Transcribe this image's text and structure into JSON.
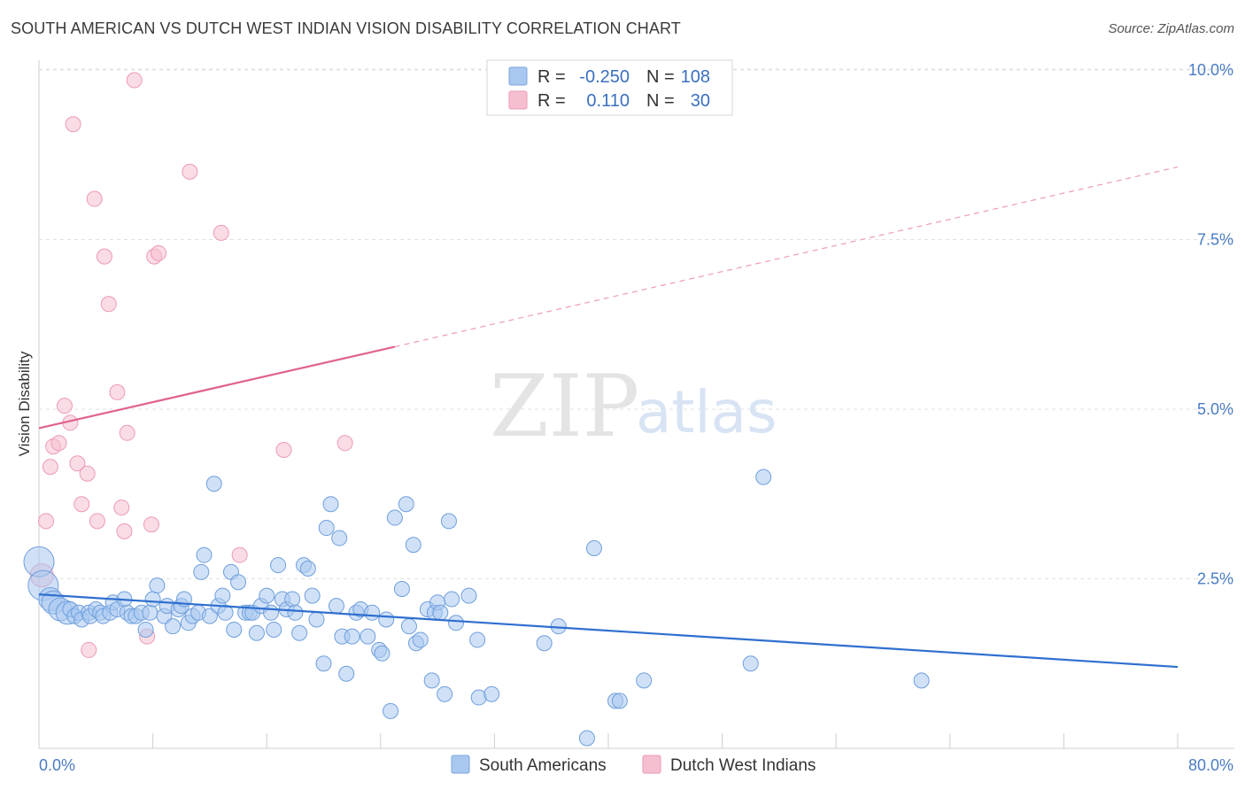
{
  "header": {
    "title": "SOUTH AMERICAN VS DUTCH WEST INDIAN VISION DISABILITY CORRELATION CHART",
    "source": "Source: ZipAtlas.com"
  },
  "watermark": {
    "zip": "ZIP",
    "atlas": "atlas"
  },
  "legend": {
    "rows": [
      {
        "r_label": "R =",
        "r_value": "-0.250",
        "n_label": "N =",
        "n_value": "108",
        "color": "#a9c8f0"
      },
      {
        "r_label": "R =",
        "r_value": "0.110",
        "n_label": "N =",
        "n_value": "30",
        "color": "#f6bfd0"
      }
    ]
  },
  "bottom_legend": {
    "items": [
      {
        "label": "South Americans",
        "color": "#a9c8f0"
      },
      {
        "label": "Dutch West Indians",
        "color": "#f6bfd0"
      }
    ]
  },
  "chart_data": {
    "type": "scatter",
    "title": "SOUTH AMERICAN VS DUTCH WEST INDIAN VISION DISABILITY CORRELATION CHART",
    "xlabel": "",
    "ylabel": "Vision Disability",
    "xlim": [
      0,
      80
    ],
    "ylim": [
      0,
      10.5
    ],
    "x_tick_labels": [
      "0.0%",
      "80.0%"
    ],
    "y_ticks": [
      2.5,
      5.0,
      7.5,
      10.0
    ],
    "y_tick_labels": [
      "2.5%",
      "5.0%",
      "7.5%",
      "10.0%"
    ],
    "grid": true,
    "legend_position": "top-center",
    "colors": {
      "south_americans": "#6fa0e0",
      "dutch_west_indians": "#ee98b4",
      "blue_line": "#2f6fcf",
      "pink_line": "#e0628f"
    },
    "series": [
      {
        "name": "South Americans",
        "r": -0.25,
        "n": 108,
        "trend": {
          "x": [
            0,
            80
          ],
          "y": [
            2.27,
            1.2
          ]
        },
        "points": [
          {
            "x": 0.0,
            "y": 2.75,
            "s": 3
          },
          {
            "x": 0.3,
            "y": 2.4,
            "s": 3
          },
          {
            "x": 0.8,
            "y": 2.2,
            "s": 2
          },
          {
            "x": 1.0,
            "y": 2.15,
            "s": 2
          },
          {
            "x": 1.5,
            "y": 2.05,
            "s": 2
          },
          {
            "x": 2.0,
            "y": 2.0,
            "s": 2
          },
          {
            "x": 2.2,
            "y": 2.05,
            "s": 1
          },
          {
            "x": 2.5,
            "y": 1.95,
            "s": 1
          },
          {
            "x": 2.8,
            "y": 2.0,
            "s": 1
          },
          {
            "x": 3.0,
            "y": 1.9,
            "s": 1
          },
          {
            "x": 3.5,
            "y": 2.0,
            "s": 1
          },
          {
            "x": 3.6,
            "y": 1.95,
            "s": 1
          },
          {
            "x": 4.0,
            "y": 2.05,
            "s": 1
          },
          {
            "x": 4.3,
            "y": 2.0,
            "s": 1
          },
          {
            "x": 4.5,
            "y": 1.95,
            "s": 1
          },
          {
            "x": 5.0,
            "y": 2.0,
            "s": 1
          },
          {
            "x": 5.2,
            "y": 2.15,
            "s": 1
          },
          {
            "x": 5.5,
            "y": 2.05,
            "s": 1
          },
          {
            "x": 6.0,
            "y": 2.2,
            "s": 1
          },
          {
            "x": 6.2,
            "y": 2.0,
            "s": 1
          },
          {
            "x": 6.5,
            "y": 1.95,
            "s": 1
          },
          {
            "x": 6.8,
            "y": 1.95,
            "s": 1
          },
          {
            "x": 7.2,
            "y": 2.0,
            "s": 1
          },
          {
            "x": 7.5,
            "y": 1.75,
            "s": 1
          },
          {
            "x": 7.8,
            "y": 2.0,
            "s": 1
          },
          {
            "x": 8.0,
            "y": 2.2,
            "s": 1
          },
          {
            "x": 8.3,
            "y": 2.4,
            "s": 1
          },
          {
            "x": 8.8,
            "y": 1.95,
            "s": 1
          },
          {
            "x": 9.0,
            "y": 2.1,
            "s": 1
          },
          {
            "x": 9.4,
            "y": 1.8,
            "s": 1
          },
          {
            "x": 9.8,
            "y": 2.05,
            "s": 1
          },
          {
            "x": 10.0,
            "y": 2.1,
            "s": 1
          },
          {
            "x": 10.2,
            "y": 2.2,
            "s": 1
          },
          {
            "x": 10.5,
            "y": 1.85,
            "s": 1
          },
          {
            "x": 10.8,
            "y": 1.95,
            "s": 1
          },
          {
            "x": 11.2,
            "y": 2.0,
            "s": 1
          },
          {
            "x": 11.4,
            "y": 2.6,
            "s": 1
          },
          {
            "x": 11.6,
            "y": 2.85,
            "s": 1
          },
          {
            "x": 12.0,
            "y": 1.95,
            "s": 1
          },
          {
            "x": 12.3,
            "y": 3.9,
            "s": 1
          },
          {
            "x": 12.6,
            "y": 2.1,
            "s": 1
          },
          {
            "x": 12.9,
            "y": 2.25,
            "s": 1
          },
          {
            "x": 13.1,
            "y": 2.0,
            "s": 1
          },
          {
            "x": 13.5,
            "y": 2.6,
            "s": 1
          },
          {
            "x": 13.7,
            "y": 1.75,
            "s": 1
          },
          {
            "x": 14.0,
            "y": 2.45,
            "s": 1
          },
          {
            "x": 14.5,
            "y": 2.0,
            "s": 1
          },
          {
            "x": 14.8,
            "y": 2.0,
            "s": 1
          },
          {
            "x": 15.0,
            "y": 2.0,
            "s": 1
          },
          {
            "x": 15.3,
            "y": 1.7,
            "s": 1
          },
          {
            "x": 15.6,
            "y": 2.1,
            "s": 1
          },
          {
            "x": 16.0,
            "y": 2.25,
            "s": 1
          },
          {
            "x": 16.3,
            "y": 2.0,
            "s": 1
          },
          {
            "x": 16.5,
            "y": 1.75,
            "s": 1
          },
          {
            "x": 16.8,
            "y": 2.7,
            "s": 1
          },
          {
            "x": 17.1,
            "y": 2.2,
            "s": 1
          },
          {
            "x": 17.4,
            "y": 2.05,
            "s": 1
          },
          {
            "x": 17.8,
            "y": 2.2,
            "s": 1
          },
          {
            "x": 18.0,
            "y": 2.0,
            "s": 1
          },
          {
            "x": 18.3,
            "y": 1.7,
            "s": 1
          },
          {
            "x": 18.6,
            "y": 2.7,
            "s": 1
          },
          {
            "x": 18.9,
            "y": 2.65,
            "s": 1
          },
          {
            "x": 19.2,
            "y": 2.25,
            "s": 1
          },
          {
            "x": 19.5,
            "y": 1.9,
            "s": 1
          },
          {
            "x": 20.0,
            "y": 1.25,
            "s": 1
          },
          {
            "x": 20.2,
            "y": 3.25,
            "s": 1
          },
          {
            "x": 20.5,
            "y": 3.6,
            "s": 1
          },
          {
            "x": 20.9,
            "y": 2.1,
            "s": 1
          },
          {
            "x": 21.1,
            "y": 3.1,
            "s": 1
          },
          {
            "x": 21.3,
            "y": 1.65,
            "s": 1
          },
          {
            "x": 21.6,
            "y": 1.1,
            "s": 1
          },
          {
            "x": 22.0,
            "y": 1.65,
            "s": 1
          },
          {
            "x": 22.3,
            "y": 2.0,
            "s": 1
          },
          {
            "x": 22.6,
            "y": 2.05,
            "s": 1
          },
          {
            "x": 23.1,
            "y": 1.65,
            "s": 1
          },
          {
            "x": 23.4,
            "y": 2.0,
            "s": 1
          },
          {
            "x": 23.9,
            "y": 1.45,
            "s": 1
          },
          {
            "x": 24.1,
            "y": 1.4,
            "s": 1
          },
          {
            "x": 24.4,
            "y": 1.9,
            "s": 1
          },
          {
            "x": 24.7,
            "y": 0.55,
            "s": 1
          },
          {
            "x": 25.0,
            "y": 3.4,
            "s": 1
          },
          {
            "x": 25.5,
            "y": 2.35,
            "s": 1
          },
          {
            "x": 25.8,
            "y": 3.6,
            "s": 1
          },
          {
            "x": 26.0,
            "y": 1.8,
            "s": 1
          },
          {
            "x": 26.3,
            "y": 3.0,
            "s": 1
          },
          {
            "x": 26.5,
            "y": 1.55,
            "s": 1
          },
          {
            "x": 26.8,
            "y": 1.6,
            "s": 1
          },
          {
            "x": 27.3,
            "y": 2.05,
            "s": 1
          },
          {
            "x": 27.6,
            "y": 1.0,
            "s": 1
          },
          {
            "x": 27.8,
            "y": 2.0,
            "s": 1
          },
          {
            "x": 28.0,
            "y": 2.15,
            "s": 1
          },
          {
            "x": 28.2,
            "y": 2.0,
            "s": 1
          },
          {
            "x": 28.5,
            "y": 0.8,
            "s": 1
          },
          {
            "x": 28.8,
            "y": 3.35,
            "s": 1
          },
          {
            "x": 29.0,
            "y": 2.2,
            "s": 1
          },
          {
            "x": 29.3,
            "y": 1.85,
            "s": 1
          },
          {
            "x": 30.8,
            "y": 1.6,
            "s": 1
          },
          {
            "x": 30.9,
            "y": 0.75,
            "s": 1
          },
          {
            "x": 31.8,
            "y": 0.8,
            "s": 1
          },
          {
            "x": 35.5,
            "y": 1.55,
            "s": 1
          },
          {
            "x": 36.5,
            "y": 1.8,
            "s": 1
          },
          {
            "x": 38.5,
            "y": 0.15,
            "s": 1
          },
          {
            "x": 39.0,
            "y": 2.95,
            "s": 1
          },
          {
            "x": 40.5,
            "y": 0.7,
            "s": 1
          },
          {
            "x": 40.8,
            "y": 0.7,
            "s": 1
          },
          {
            "x": 42.5,
            "y": 1.0,
            "s": 1
          },
          {
            "x": 50.0,
            "y": 1.25,
            "s": 1
          },
          {
            "x": 50.9,
            "y": 4.0,
            "s": 1
          },
          {
            "x": 62.0,
            "y": 1.0,
            "s": 1
          },
          {
            "x": 30.2,
            "y": 2.25,
            "s": 1
          }
        ]
      },
      {
        "name": "Dutch West Indians",
        "r": 0.11,
        "n": 30,
        "trend_solid": {
          "x": [
            0,
            25
          ],
          "y": [
            4.72,
            5.92
          ]
        },
        "trend_dashed": {
          "x": [
            25,
            80
          ],
          "y": [
            5.92,
            8.57
          ]
        },
        "points": [
          {
            "x": 0.2,
            "y": 2.55,
            "s": 2
          },
          {
            "x": 0.5,
            "y": 3.35,
            "s": 1
          },
          {
            "x": 0.8,
            "y": 4.15,
            "s": 1
          },
          {
            "x": 1.0,
            "y": 4.45,
            "s": 1
          },
          {
            "x": 1.4,
            "y": 4.5,
            "s": 1
          },
          {
            "x": 1.8,
            "y": 5.05,
            "s": 1
          },
          {
            "x": 2.2,
            "y": 4.8,
            "s": 1
          },
          {
            "x": 2.4,
            "y": 9.2,
            "s": 1
          },
          {
            "x": 2.7,
            "y": 4.2,
            "s": 1
          },
          {
            "x": 3.0,
            "y": 3.6,
            "s": 1
          },
          {
            "x": 3.4,
            "y": 4.05,
            "s": 1
          },
          {
            "x": 3.5,
            "y": 1.45,
            "s": 1
          },
          {
            "x": 3.9,
            "y": 8.1,
            "s": 1
          },
          {
            "x": 4.1,
            "y": 3.35,
            "s": 1
          },
          {
            "x": 4.6,
            "y": 7.25,
            "s": 1
          },
          {
            "x": 4.9,
            "y": 6.55,
            "s": 1
          },
          {
            "x": 5.5,
            "y": 5.25,
            "s": 1
          },
          {
            "x": 5.8,
            "y": 3.55,
            "s": 1
          },
          {
            "x": 6.0,
            "y": 3.2,
            "s": 1
          },
          {
            "x": 6.2,
            "y": 4.65,
            "s": 1
          },
          {
            "x": 6.7,
            "y": 9.85,
            "s": 1
          },
          {
            "x": 7.6,
            "y": 1.65,
            "s": 1
          },
          {
            "x": 7.9,
            "y": 3.3,
            "s": 1
          },
          {
            "x": 8.1,
            "y": 7.25,
            "s": 1
          },
          {
            "x": 8.4,
            "y": 7.3,
            "s": 1
          },
          {
            "x": 10.6,
            "y": 8.5,
            "s": 1
          },
          {
            "x": 12.8,
            "y": 7.6,
            "s": 1
          },
          {
            "x": 14.1,
            "y": 2.85,
            "s": 1
          },
          {
            "x": 17.2,
            "y": 4.4,
            "s": 1
          },
          {
            "x": 21.5,
            "y": 4.5,
            "s": 1
          }
        ]
      }
    ]
  }
}
